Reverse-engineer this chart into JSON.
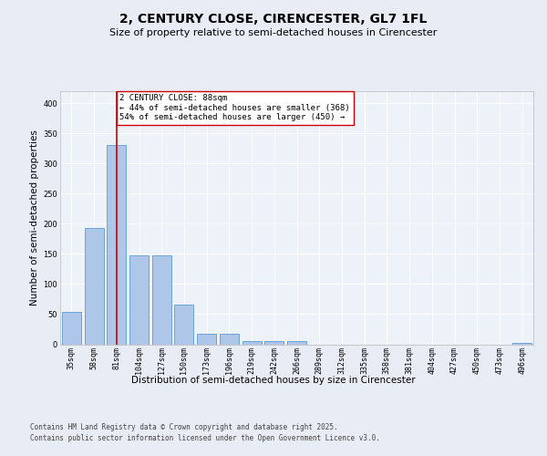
{
  "title_line1": "2, CENTURY CLOSE, CIRENCESTER, GL7 1FL",
  "title_line2": "Size of property relative to semi-detached houses in Cirencester",
  "xlabel": "Distribution of semi-detached houses by size in Cirencester",
  "ylabel": "Number of semi-detached properties",
  "categories": [
    "35sqm",
    "58sqm",
    "81sqm",
    "104sqm",
    "127sqm",
    "150sqm",
    "173sqm",
    "196sqm",
    "219sqm",
    "242sqm",
    "266sqm",
    "289sqm",
    "312sqm",
    "335sqm",
    "358sqm",
    "381sqm",
    "404sqm",
    "427sqm",
    "450sqm",
    "473sqm",
    "496sqm"
  ],
  "values": [
    53,
    193,
    330,
    148,
    148,
    66,
    18,
    18,
    5,
    5,
    5,
    0,
    0,
    0,
    0,
    0,
    0,
    0,
    0,
    0,
    3
  ],
  "bar_color": "#aec6e8",
  "bar_edge_color": "#5b9bd5",
  "vline_index": 2,
  "vline_color": "#cc0000",
  "annotation_text": "2 CENTURY CLOSE: 88sqm\n← 44% of semi-detached houses are smaller (368)\n54% of semi-detached houses are larger (450) →",
  "ylim_max": 420,
  "yticks": [
    0,
    50,
    100,
    150,
    200,
    250,
    300,
    350,
    400
  ],
  "footnote1": "Contains HM Land Registry data © Crown copyright and database right 2025.",
  "footnote2": "Contains public sector information licensed under the Open Government Licence v3.0.",
  "bg_color": "#e8ecf5",
  "plot_bg_color": "#edf1f8",
  "grid_color": "#ffffff",
  "title_fontsize": 10,
  "subtitle_fontsize": 8,
  "axis_label_fontsize": 7.5,
  "tick_fontsize": 6,
  "annotation_fontsize": 6.5,
  "footnote_fontsize": 5.5
}
